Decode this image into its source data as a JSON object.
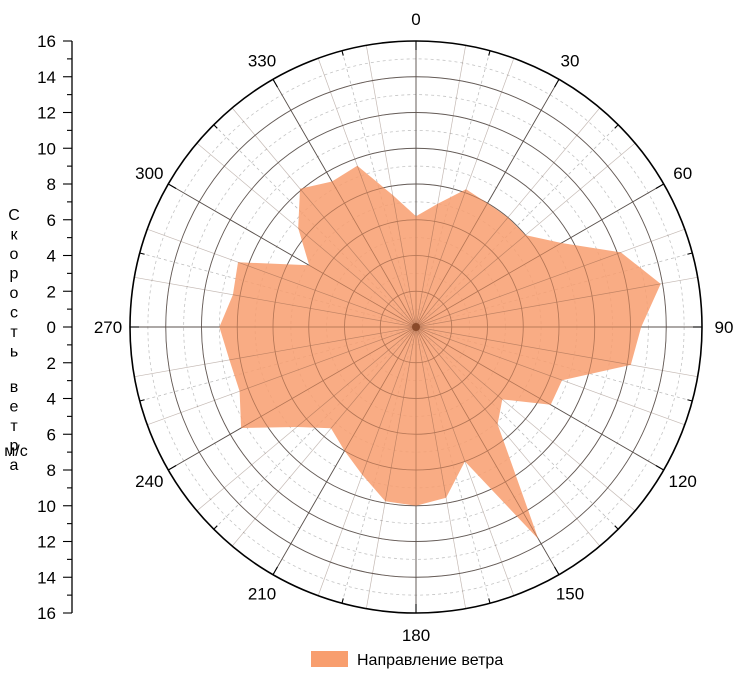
{
  "chart_data": {
    "type": "polar-area",
    "ylabel": "Скорость ветра",
    "yunit": "м/с",
    "rlim": [
      0,
      16
    ],
    "radial_ticks": [
      "16",
      "14",
      "12",
      "10",
      "8",
      "6",
      "4",
      "2",
      "0",
      "2",
      "4",
      "6",
      "8",
      "10",
      "12",
      "14",
      "16"
    ],
    "angle_labels": [
      {
        "angle": 0,
        "label": "0"
      },
      {
        "angle": 30,
        "label": "30"
      },
      {
        "angle": 60,
        "label": "60"
      },
      {
        "angle": 90,
        "label": "90"
      },
      {
        "angle": 120,
        "label": "120"
      },
      {
        "angle": 150,
        "label": "150"
      },
      {
        "angle": 180,
        "label": "180"
      },
      {
        "angle": 210,
        "label": "210"
      },
      {
        "angle": 240,
        "label": "240"
      },
      {
        "angle": 270,
        "label": "270"
      },
      {
        "angle": 300,
        "label": "300"
      },
      {
        "angle": 330,
        "label": "330"
      }
    ],
    "grid": true,
    "legend_position": "bottom",
    "series": [
      {
        "name": "Направление ветра",
        "color": "#f89e6e",
        "directions": [
          0,
          10,
          20,
          30,
          40,
          50,
          60,
          70,
          80,
          90,
          100,
          110,
          120,
          130,
          140,
          150,
          160,
          170,
          180,
          190,
          200,
          210,
          220,
          230,
          240,
          250,
          260,
          270,
          280,
          290,
          300,
          310,
          320,
          330,
          340,
          350
        ],
        "values": [
          6.2,
          7.0,
          8.2,
          8.0,
          8.0,
          8.0,
          9.4,
          12.2,
          13.9,
          12.6,
          12.2,
          8.7,
          8.7,
          6.3,
          7.1,
          13.7,
          8.0,
          9.7,
          10.0,
          9.9,
          8.8,
          8.0,
          7.4,
          8.7,
          11.3,
          10.5,
          10.6,
          11.0,
          10.4,
          10.6,
          6.9,
          8.6,
          10.1,
          9.4,
          9.6,
          7.5
        ]
      }
    ]
  }
}
